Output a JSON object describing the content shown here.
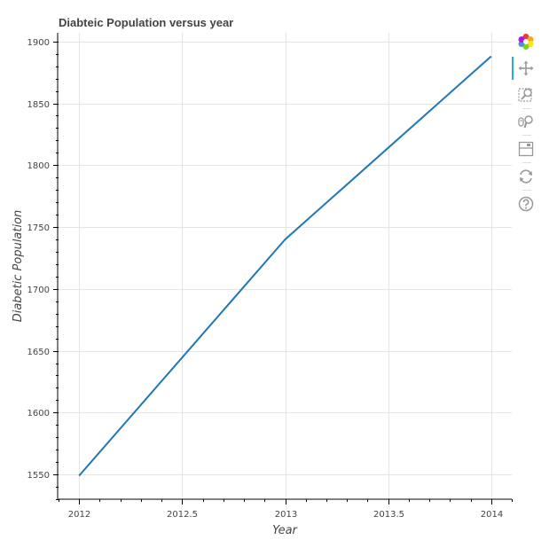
{
  "chart_data": {
    "type": "line",
    "title": "Diabteic Population versus year",
    "xlabel": "Year",
    "ylabel": "Diabetic Population",
    "x": [
      2012,
      2013,
      2014
    ],
    "series": [
      {
        "values": [
          1549,
          1740,
          1888
        ],
        "color": "#1f77b4"
      }
    ],
    "xlim": [
      2011.9,
      2014.1
    ],
    "ylim": [
      1530,
      1907
    ],
    "xticks": [
      2012,
      2012.5,
      2013,
      2013.5,
      2014
    ],
    "xtick_labels": [
      "2012",
      "2012.5",
      "2013",
      "2013.5",
      "2014"
    ],
    "yticks": [
      1550,
      1600,
      1650,
      1700,
      1750,
      1800,
      1850,
      1900
    ],
    "ytick_labels": [
      "1550",
      "1600",
      "1650",
      "1700",
      "1750",
      "1800",
      "1850",
      "1900"
    ],
    "grid": true,
    "legend": "none"
  },
  "toolbar": {
    "tools": [
      {
        "name": "bokeh-logo-icon",
        "label": "Bokeh"
      },
      {
        "name": "pan-tool-icon",
        "label": "Pan",
        "active": true
      },
      {
        "name": "box-zoom-tool-icon",
        "label": "Box Zoom"
      },
      {
        "name": "wheel-zoom-tool-icon",
        "label": "Wheel Zoom"
      },
      {
        "name": "save-tool-icon",
        "label": "Save"
      },
      {
        "name": "reset-tool-icon",
        "label": "Reset"
      },
      {
        "name": "help-tool-icon",
        "label": "Help"
      }
    ]
  }
}
